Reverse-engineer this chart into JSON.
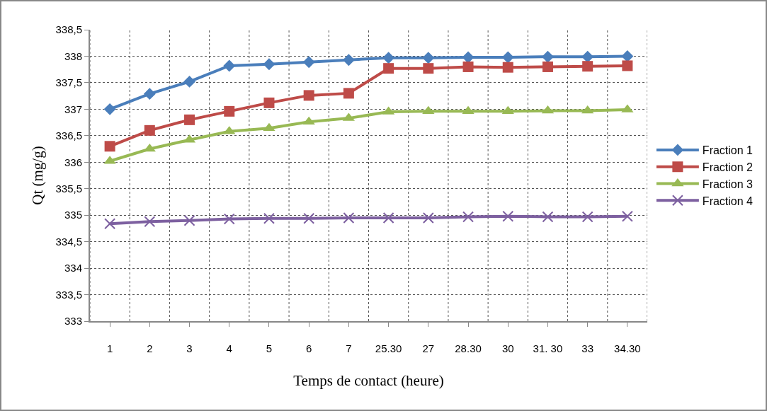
{
  "chart_data": {
    "type": "line",
    "xlabel": "Temps de contact (heure)",
    "ylabel": "Qt (mg/g)",
    "categories": [
      "1",
      "2",
      "3",
      "4",
      "5",
      "6",
      "7",
      "25.30",
      "27",
      "28.30",
      "30",
      "31. 30",
      "33",
      "34.30"
    ],
    "series": [
      {
        "name": "Fraction 1",
        "color": "#4a7ebb",
        "marker": "diamond",
        "values": [
          337.0,
          337.29,
          337.52,
          337.82,
          337.85,
          337.89,
          337.93,
          337.97,
          337.97,
          337.98,
          337.98,
          337.99,
          337.99,
          338.0
        ]
      },
      {
        "name": "Fraction 2",
        "color": "#be4b48",
        "marker": "square",
        "values": [
          336.3,
          336.6,
          336.8,
          336.96,
          337.12,
          337.26,
          337.3,
          337.77,
          337.77,
          337.8,
          337.79,
          337.8,
          337.81,
          337.82
        ]
      },
      {
        "name": "Fraction 3",
        "color": "#98b954",
        "marker": "triangle",
        "values": [
          336.02,
          336.25,
          336.42,
          336.58,
          336.64,
          336.76,
          336.83,
          336.95,
          336.96,
          336.96,
          336.96,
          336.97,
          336.97,
          336.99
        ]
      },
      {
        "name": "Fraction 4",
        "color": "#7d60a0",
        "marker": "cross",
        "values": [
          334.84,
          334.88,
          334.9,
          334.93,
          334.94,
          334.94,
          334.95,
          334.95,
          334.95,
          334.97,
          334.98,
          334.97,
          334.97,
          334.98
        ]
      }
    ],
    "ylim": [
      333,
      338.5
    ],
    "yticks": [
      333,
      {
        "value": 333.5,
        "label": "333,5"
      },
      334,
      {
        "value": 334.5,
        "label": "334,5"
      },
      335,
      {
        "value": 335.5,
        "label": "335,5"
      },
      336,
      {
        "value": 336.5,
        "label": "336,5"
      },
      337,
      {
        "value": 337.5,
        "label": "337,5"
      },
      338,
      {
        "value": 338.5,
        "label": "338,5"
      }
    ],
    "grid": true,
    "legend": "right",
    "line_style": "solid"
  }
}
